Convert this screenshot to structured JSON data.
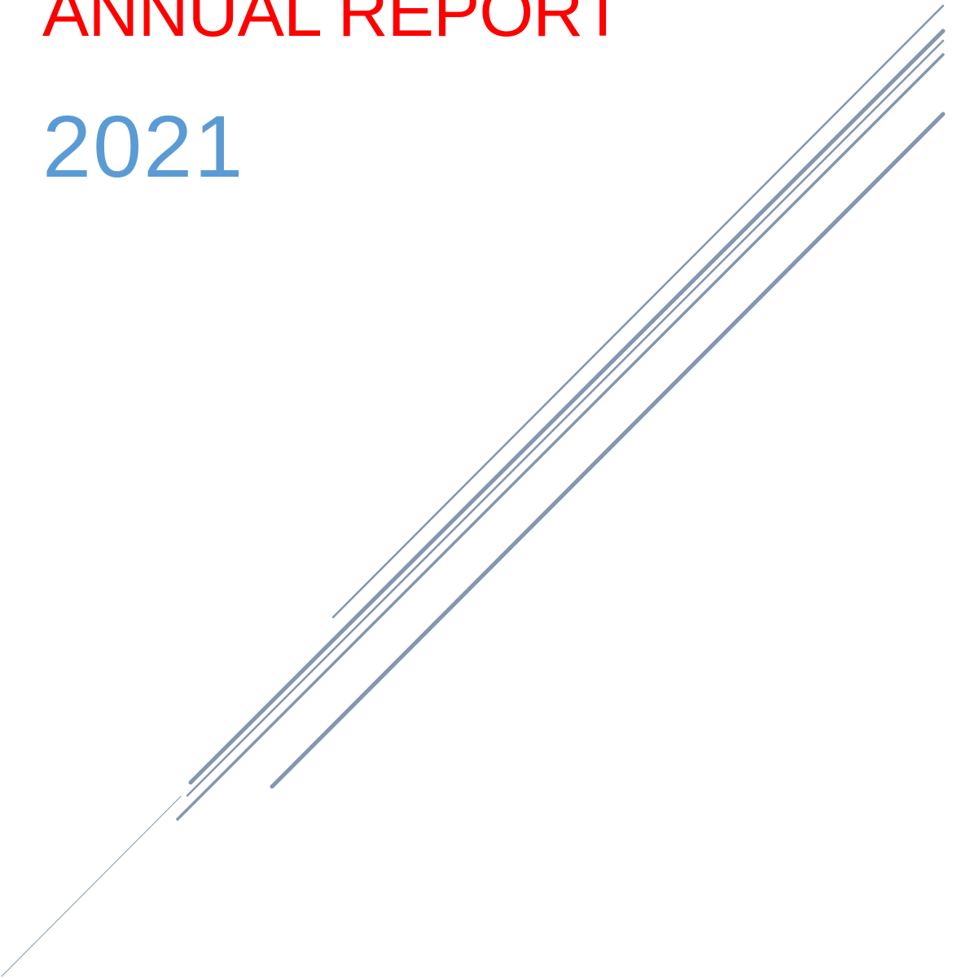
{
  "cover": {
    "title": "ANNUAL REPORT",
    "year": "2021"
  },
  "colors": {
    "title": "#ff0000",
    "year": "#5b9bd5",
    "lines": "#8496b0",
    "background": "#ffffff"
  }
}
